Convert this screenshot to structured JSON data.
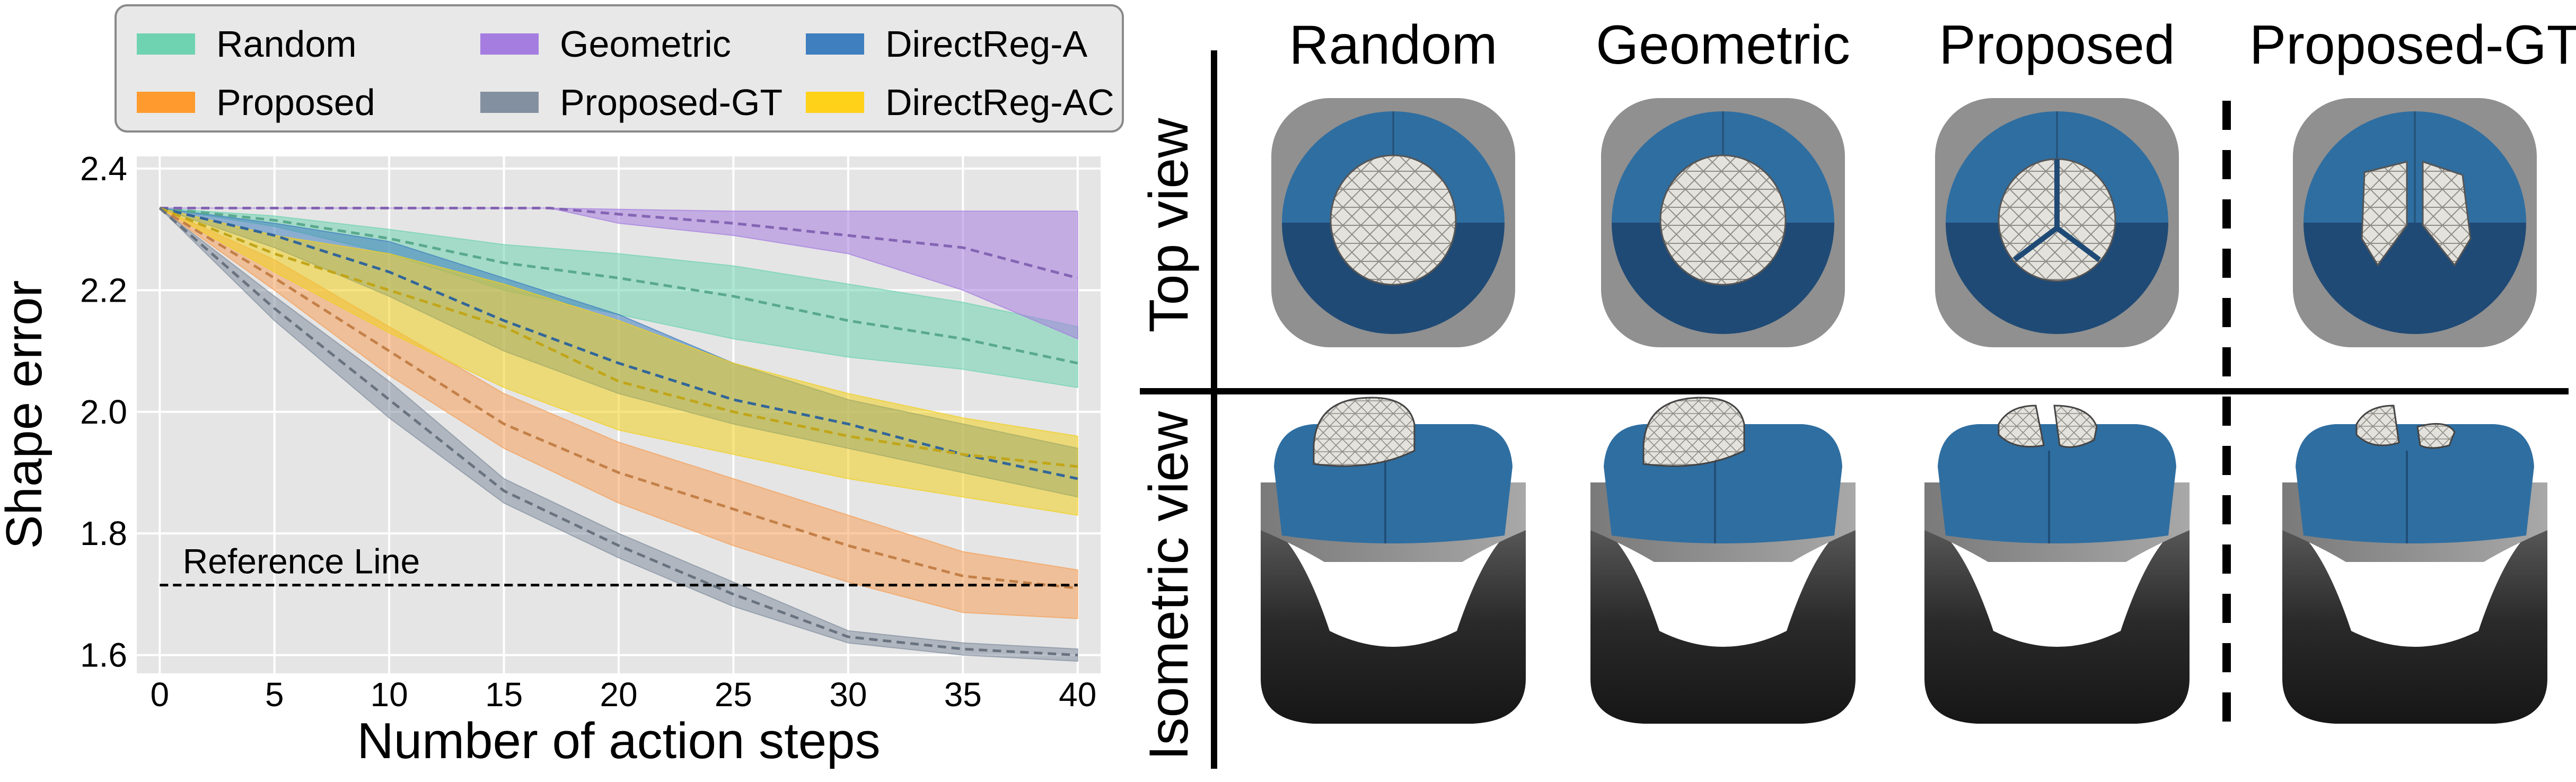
{
  "chart_data": {
    "type": "line",
    "xlabel": "Number of action steps",
    "ylabel": "Shape error",
    "xlim": [
      -1,
      41
    ],
    "ylim": [
      1.57,
      2.42
    ],
    "xticks": [
      0,
      5,
      10,
      15,
      20,
      25,
      30,
      35,
      40
    ],
    "yticks": [
      1.6,
      1.8,
      2.0,
      2.2,
      2.4
    ],
    "ytick_labels": [
      "1.6",
      "1.8",
      "2.0",
      "2.2",
      "2.4"
    ],
    "grid": true,
    "legend_position": "top",
    "reference_line": {
      "y": 1.715,
      "label": "Reference Line"
    },
    "series": [
      {
        "name": "Random",
        "color": "#6fd3b1",
        "x": [
          0,
          5,
          10,
          15,
          20,
          25,
          30,
          35,
          40
        ],
        "y": [
          2.335,
          2.315,
          2.285,
          2.245,
          2.22,
          2.19,
          2.15,
          2.12,
          2.08
        ],
        "lower": [
          2.335,
          2.305,
          2.26,
          2.2,
          2.16,
          2.12,
          2.09,
          2.07,
          2.04
        ],
        "upper": [
          2.335,
          2.322,
          2.3,
          2.275,
          2.26,
          2.24,
          2.21,
          2.18,
          2.14
        ]
      },
      {
        "name": "Geometric",
        "color": "#a57de0",
        "x": [
          0,
          5,
          10,
          15,
          17,
          20,
          25,
          30,
          35,
          40
        ],
        "y": [
          2.335,
          2.335,
          2.335,
          2.335,
          2.335,
          2.325,
          2.31,
          2.29,
          2.27,
          2.22
        ],
        "lower": [
          2.335,
          2.335,
          2.335,
          2.335,
          2.335,
          2.31,
          2.29,
          2.26,
          2.2,
          2.12
        ],
        "upper": [
          2.335,
          2.335,
          2.335,
          2.335,
          2.335,
          2.333,
          2.33,
          2.33,
          2.33,
          2.33
        ]
      },
      {
        "name": "DirectReg-A",
        "color": "#3f7fbf",
        "x": [
          0,
          5,
          10,
          15,
          20,
          25,
          30,
          35,
          40
        ],
        "y": [
          2.335,
          2.29,
          2.23,
          2.15,
          2.08,
          2.02,
          1.98,
          1.93,
          1.89
        ],
        "lower": [
          2.335,
          2.27,
          2.19,
          2.1,
          2.03,
          1.98,
          1.94,
          1.9,
          1.86
        ],
        "upper": [
          2.335,
          2.31,
          2.28,
          2.22,
          2.16,
          2.08,
          2.02,
          1.98,
          1.94
        ]
      },
      {
        "name": "Proposed",
        "color": "#f5a05a",
        "x": [
          0,
          5,
          10,
          15,
          20,
          25,
          30,
          35,
          40
        ],
        "y": [
          2.335,
          2.22,
          2.1,
          1.98,
          1.9,
          1.84,
          1.78,
          1.73,
          1.71
        ],
        "lower": [
          2.335,
          2.2,
          2.06,
          1.94,
          1.85,
          1.78,
          1.72,
          1.67,
          1.66
        ],
        "upper": [
          2.335,
          2.25,
          2.14,
          2.03,
          1.95,
          1.89,
          1.83,
          1.77,
          1.74
        ]
      },
      {
        "name": "DirectReg-AC",
        "color": "#f2d01f",
        "x": [
          0,
          5,
          10,
          15,
          20,
          25,
          30,
          35,
          40
        ],
        "y": [
          2.335,
          2.26,
          2.2,
          2.14,
          2.05,
          2.0,
          1.96,
          1.93,
          1.91
        ],
        "lower": [
          2.335,
          2.23,
          2.13,
          2.04,
          1.97,
          1.93,
          1.89,
          1.86,
          1.83
        ],
        "upper": [
          2.335,
          2.29,
          2.26,
          2.21,
          2.15,
          2.08,
          2.03,
          1.99,
          1.96
        ]
      },
      {
        "name": "Proposed-GT",
        "color": "#8390a0",
        "x": [
          0,
          5,
          10,
          15,
          20,
          25,
          30,
          35,
          40
        ],
        "y": [
          2.335,
          2.17,
          2.02,
          1.87,
          1.78,
          1.7,
          1.63,
          1.61,
          1.6
        ],
        "lower": [
          2.335,
          2.15,
          1.99,
          1.85,
          1.76,
          1.68,
          1.62,
          1.6,
          1.59
        ],
        "upper": [
          2.335,
          2.19,
          2.05,
          1.89,
          1.8,
          1.72,
          1.64,
          1.62,
          1.61
        ]
      }
    ]
  },
  "legend": {
    "items": [
      {
        "label": "Random",
        "color": "#6fd3b1"
      },
      {
        "label": "Geometric",
        "color": "#a57de0"
      },
      {
        "label": "DirectReg-A",
        "color": "#3f7fbf"
      },
      {
        "label": "Proposed",
        "color": "#ff9a2e"
      },
      {
        "label": "Proposed-GT",
        "color": "#8390a0"
      },
      {
        "label": "DirectReg-AC",
        "color": "#ffd21a"
      }
    ]
  },
  "render_grid": {
    "column_headers": [
      "Random",
      "Geometric",
      "Proposed",
      "Proposed-GT"
    ],
    "row_labels": [
      "Top view",
      "Isometric view"
    ],
    "colors": {
      "lid_blue": "#2f6ea1",
      "lid_blue_dark": "#1f4a75",
      "base_gray": "#909090",
      "base_dark": "#3a3a3a",
      "mesh_fill": "#e4e2dc"
    }
  }
}
